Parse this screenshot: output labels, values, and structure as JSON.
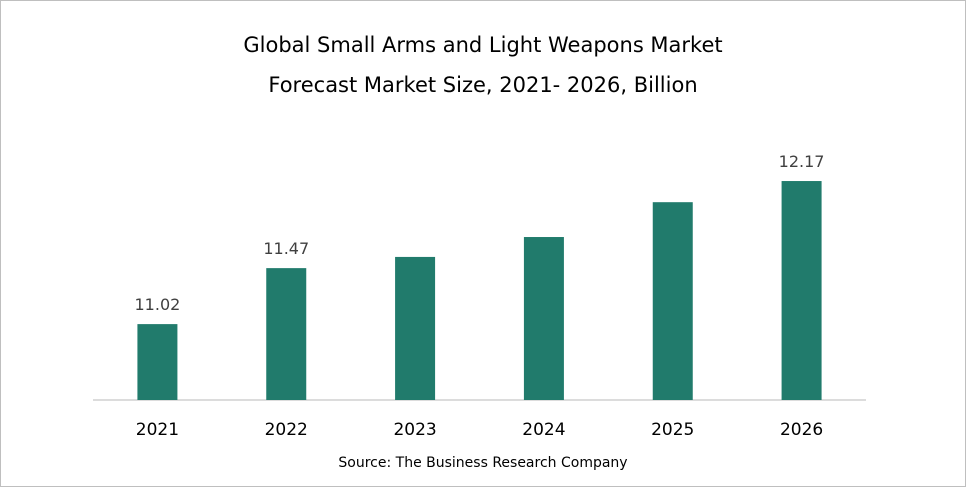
{
  "chart_data": {
    "type": "bar",
    "title": "Global Small Arms and Light Weapons Market",
    "subtitle": "Forecast Market Size, 2021- 2026, Billion",
    "categories": [
      "2021",
      "2022",
      "2023",
      "2024",
      "2025",
      "2026"
    ],
    "values": [
      11.02,
      11.47,
      11.56,
      11.72,
      12.0,
      12.17
    ],
    "data_labels": [
      "11.02",
      "11.47",
      "",
      "",
      "",
      "12.17"
    ],
    "xlabel": "",
    "ylabel": "",
    "ylim": [
      10.41,
      12.5
    ],
    "grid": false,
    "legend": "none",
    "bar_color": "#217b6c",
    "source": "Source: The Business Research Company"
  }
}
